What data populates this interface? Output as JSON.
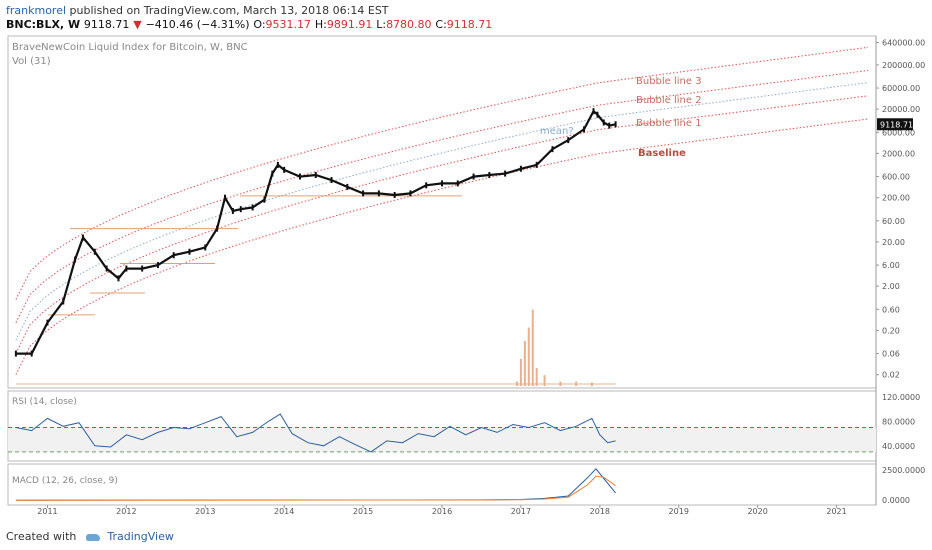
{
  "header": {
    "user": "frankmorel",
    "published": "published on TradingView.com, March 13, 2018 06:14 EST",
    "symbol": "BNC:BLX, W",
    "last": "9118.71",
    "change": "−410.46 (−4.31%)",
    "o_label": "O:",
    "o_val": "9531.17",
    "h_label": "H:",
    "h_val": "9891.91",
    "l_label": "L:",
    "l_val": "8780.80",
    "c_label": "C:",
    "c_val": "9118.71"
  },
  "footer": {
    "created": "Created with",
    "brand": "TradingView"
  },
  "colors": {
    "candle": "#111111",
    "band": "#e05050",
    "mean": "#8aaad0",
    "rsi": "#2c5f9e",
    "macd": "#2c5f9e",
    "signal": "#f08030",
    "volume": "#e8b090"
  },
  "chart_data": {
    "type": "line",
    "title": "BraveNewCoin Liquid Index for Bitcoin, W, BNC",
    "volume_label": "Vol (31)",
    "price_scale": "log",
    "price_ticks": [
      "640000.00",
      "200000.00",
      "60000.00",
      "20000.00",
      "6000.00",
      "2000.00",
      "600.00",
      "200.00",
      "60.00",
      "20.00",
      "6.00",
      "2.00",
      "0.60",
      "0.20",
      "0.06",
      "0.02"
    ],
    "last_price_label": "9118.71",
    "x_ticks": [
      "2011",
      "2012",
      "2013",
      "2014",
      "2015",
      "2016",
      "2017",
      "2018",
      "2019",
      "2020",
      "2021"
    ],
    "price_series": {
      "name": "BNC:BLX",
      "x": [
        2010.6,
        2010.8,
        2011.0,
        2011.2,
        2011.35,
        2011.45,
        2011.6,
        2011.75,
        2011.9,
        2012.0,
        2012.2,
        2012.4,
        2012.6,
        2012.8,
        2013.0,
        2013.15,
        2013.25,
        2013.35,
        2013.45,
        2013.6,
        2013.75,
        2013.85,
        2013.92,
        2014.0,
        2014.2,
        2014.4,
        2014.6,
        2014.8,
        2015.0,
        2015.2,
        2015.4,
        2015.6,
        2015.8,
        2016.0,
        2016.2,
        2016.4,
        2016.6,
        2016.8,
        2017.0,
        2017.2,
        2017.4,
        2017.6,
        2017.8,
        2017.92,
        2017.97,
        2018.05,
        2018.12,
        2018.2
      ],
      "y": [
        0.06,
        0.06,
        0.3,
        0.9,
        8,
        25,
        12,
        5,
        3,
        5,
        5,
        6,
        10,
        12,
        15,
        40,
        200,
        100,
        110,
        120,
        180,
        700,
        1100,
        850,
        600,
        650,
        500,
        350,
        250,
        250,
        230,
        250,
        380,
        420,
        420,
        600,
        650,
        700,
        900,
        1100,
        2500,
        4000,
        7000,
        18000,
        15000,
        10000,
        8500,
        9118.71
      ]
    },
    "bands": [
      {
        "name": "Bubble line 3",
        "x": [
          2010.6,
          2018.0,
          2021.4
        ],
        "y": [
          1.0,
          80000,
          500000
        ]
      },
      {
        "name": "Bubble line 2",
        "x": [
          2010.6,
          2018.0,
          2021.4
        ],
        "y": [
          0.3,
          25000,
          150000
        ]
      },
      {
        "name": "mean?",
        "x": [
          2010.6,
          2018.0,
          2021.4
        ],
        "y": [
          0.12,
          13000,
          80000
        ]
      },
      {
        "name": "Bubble line 1",
        "x": [
          2010.6,
          2018.0,
          2021.4
        ],
        "y": [
          0.06,
          7000,
          40000
        ]
      },
      {
        "name": "Baseline",
        "x": [
          2010.6,
          2018.0,
          2021.4
        ],
        "y": [
          0.02,
          2000,
          12000
        ]
      }
    ],
    "volume_x": [
      2016.95,
      2017.0,
      2017.05,
      2017.1,
      2017.15,
      2017.2,
      2017.3,
      2017.5,
      2017.7,
      2017.9
    ],
    "volume": [
      0.05,
      0.3,
      0.5,
      0.65,
      0.85,
      0.2,
      0.12,
      0.05,
      0.05,
      0.04
    ],
    "rsi": {
      "label": "RSI (14, close)",
      "ticks": [
        "120.0000",
        "80.0000",
        "40.0000"
      ],
      "levels": [
        70,
        30
      ],
      "x": [
        2010.6,
        2010.8,
        2011.0,
        2011.2,
        2011.4,
        2011.6,
        2011.8,
        2012.0,
        2012.2,
        2012.4,
        2012.6,
        2012.8,
        2013.0,
        2013.2,
        2013.4,
        2013.6,
        2013.8,
        2013.95,
        2014.1,
        2014.3,
        2014.5,
        2014.7,
        2014.9,
        2015.1,
        2015.3,
        2015.5,
        2015.7,
        2015.9,
        2016.1,
        2016.3,
        2016.5,
        2016.7,
        2016.9,
        2017.1,
        2017.3,
        2017.5,
        2017.7,
        2017.9,
        2018.0,
        2018.1,
        2018.2
      ],
      "y": [
        70,
        65,
        85,
        72,
        78,
        40,
        38,
        58,
        50,
        62,
        70,
        68,
        78,
        88,
        55,
        62,
        80,
        92,
        60,
        45,
        40,
        55,
        42,
        30,
        48,
        45,
        60,
        55,
        72,
        58,
        70,
        62,
        75,
        70,
        78,
        65,
        72,
        85,
        58,
        45,
        48
      ]
    },
    "macd": {
      "label": "MACD (12, 26, close, 9)",
      "ticks": [
        "2500.0000",
        "0.0000"
      ],
      "macd_x": [
        2010.6,
        2016.5,
        2017.0,
        2017.3,
        2017.6,
        2017.85,
        2017.95,
        2018.05,
        2018.2
      ],
      "macd_y": [
        0,
        20,
        60,
        150,
        350,
        1900,
        2600,
        1800,
        600
      ],
      "signal_x": [
        2010.6,
        2016.5,
        2017.0,
        2017.3,
        2017.6,
        2017.85,
        2017.95,
        2018.05,
        2018.2
      ],
      "signal_y": [
        0,
        15,
        40,
        100,
        250,
        1300,
        2000,
        1900,
        1200
      ]
    }
  }
}
